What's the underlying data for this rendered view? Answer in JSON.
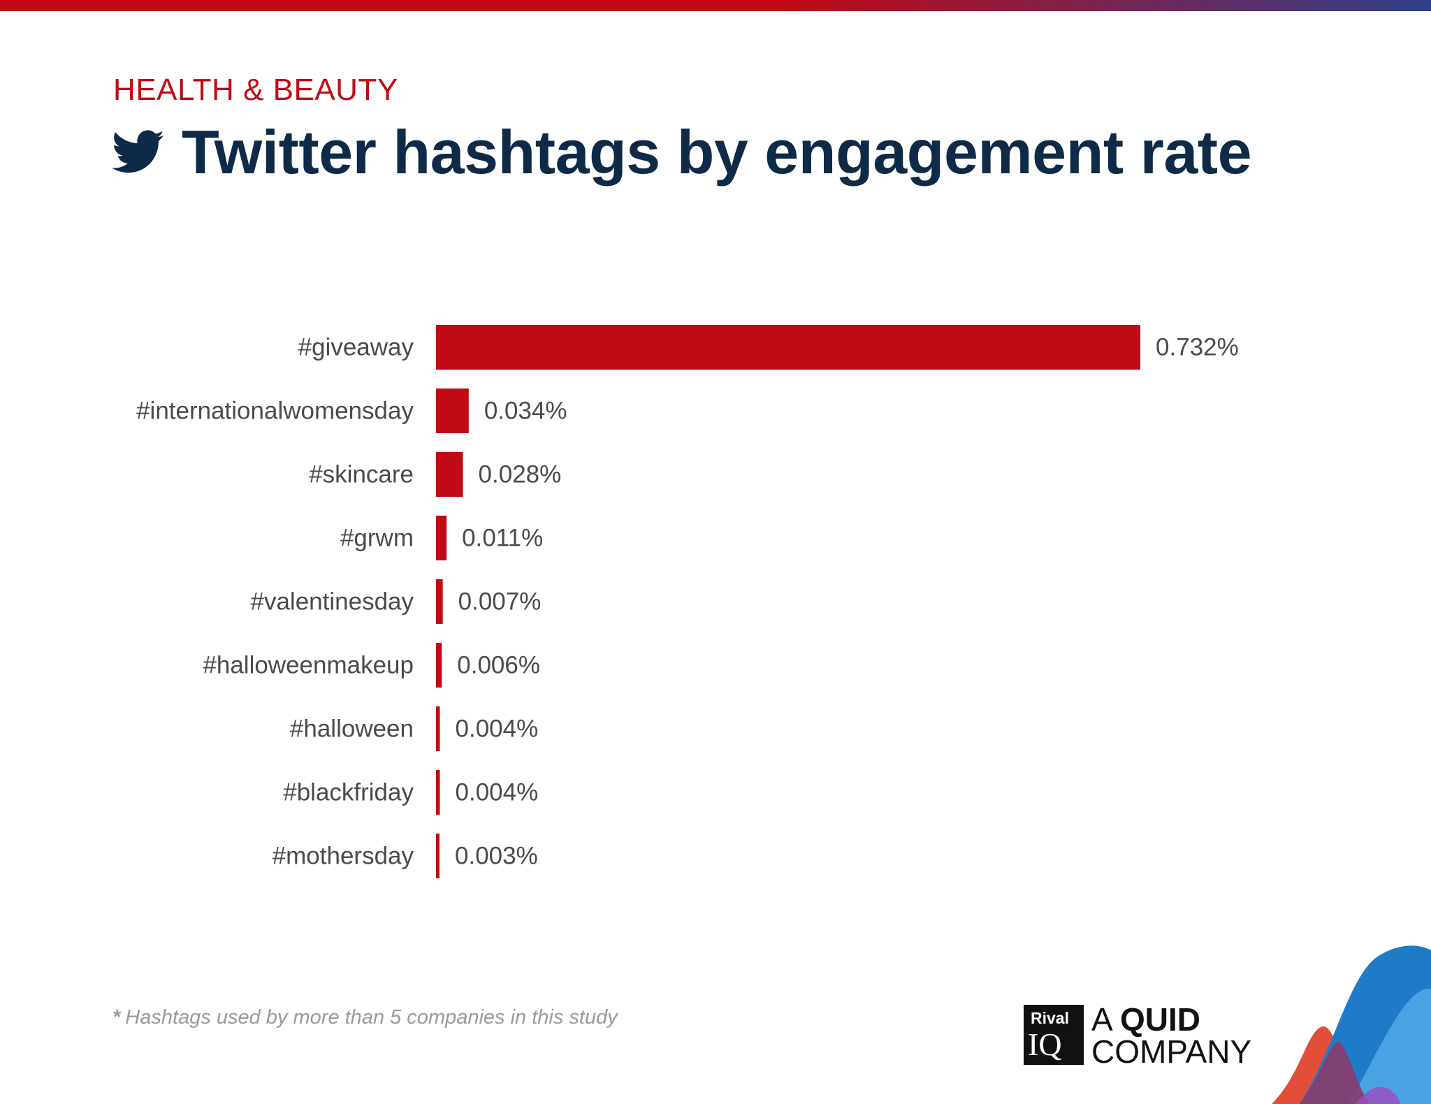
{
  "header": {
    "category": "HEALTH & BEAUTY",
    "title": "Twitter hashtags by engagement rate"
  },
  "chart_data": {
    "type": "bar",
    "orientation": "horizontal",
    "title": "Twitter hashtags by engagement rate",
    "xlabel": "",
    "ylabel": "",
    "xlim": [
      0,
      0.732
    ],
    "grid": false,
    "categories": [
      "#giveaway",
      "#internationalwomensday",
      "#skincare",
      "#grwm",
      "#valentinesday",
      "#halloweenmakeup",
      "#halloween",
      "#blackfriday",
      "#mothersday"
    ],
    "values": [
      0.732,
      0.034,
      0.028,
      0.011,
      0.007,
      0.006,
      0.004,
      0.004,
      0.003
    ],
    "value_labels": [
      "0.732%",
      "0.034%",
      "0.028%",
      "0.011%",
      "0.007%",
      "0.006%",
      "0.004%",
      "0.004%",
      "0.003%"
    ],
    "bar_color": "#c10a16"
  },
  "footnote": {
    "star": "*",
    "text": "Hashtags used by more than 5 companies in this study"
  },
  "branding": {
    "logo_small": "Rival",
    "logo_big": "IQ",
    "tagline_prefix": "A",
    "tagline_bold": "QUID",
    "tagline_line2": "COMPANY"
  },
  "colors": {
    "accent_red": "#c10a16",
    "title_navy": "#0e2a47",
    "label_gray": "#4a4a4a",
    "footnote_gray": "#9a9a9a",
    "bar_gradient_end": "#2f3f8a"
  },
  "icons": {
    "title": "twitter-bird-icon"
  }
}
